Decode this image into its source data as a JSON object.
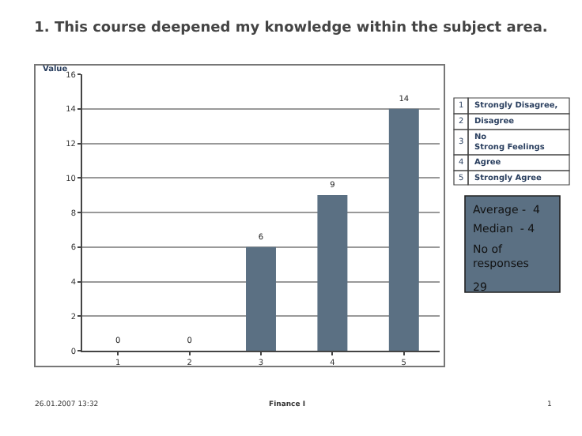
{
  "chart_data": {
    "type": "bar",
    "title": "1. This course deepened my knowledge within the subject area.",
    "ylabel": "Value",
    "categories": [
      "1",
      "2",
      "3",
      "4",
      "5"
    ],
    "values": [
      0,
      0,
      6,
      9,
      14
    ],
    "color": "#5b7083",
    "ylim": [
      0,
      16
    ],
    "yticks": [
      0,
      2,
      4,
      6,
      8,
      10,
      12,
      14,
      16
    ],
    "grid": "y",
    "data_labels": true,
    "annotations": [
      "1",
      "Strongly Disagree,",
      "2",
      "Disagree",
      "3",
      "No Strong Feelings",
      "4",
      "Agree",
      "5",
      "Strongly Agree",
      "Average -  4",
      "Median  - 4",
      "No of responses",
      "29",
      "26.01.2007 13:32",
      "Finance I",
      "1"
    ]
  }
}
